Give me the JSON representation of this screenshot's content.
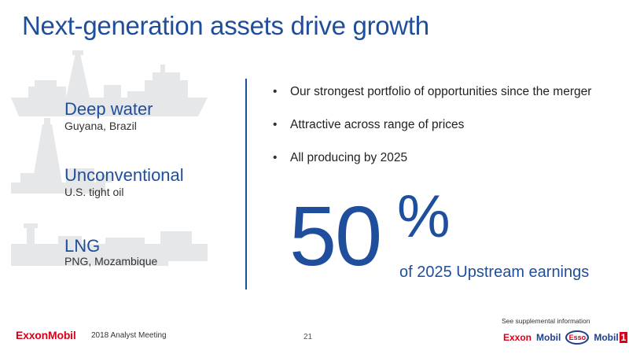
{
  "title": "Next-generation assets drive growth",
  "assets": [
    {
      "name": "Deep water",
      "sub": "Guyana, Brazil",
      "icon": "drillship-silhouette-icon"
    },
    {
      "name": "Unconventional",
      "sub": "U.S. tight oil",
      "icon": "drilling-rig-silhouette-icon"
    },
    {
      "name": "LNG",
      "sub": "PNG, Mozambique",
      "icon": "lng-plant-silhouette-icon"
    }
  ],
  "bullets": [
    "Our strongest portfolio of opportunities since the merger",
    "Attractive across range of prices",
    "All producing by 2025"
  ],
  "highlight": {
    "number": "50",
    "percent": "%",
    "caption": "of 2025 Upstream earnings"
  },
  "footer": {
    "logo": "ExxonMobil",
    "meeting": "2018 Analyst Meeting",
    "page": "21",
    "supplemental": "See supplemental information",
    "brands": {
      "exxon": "Exxon",
      "mobil": "Mobil",
      "esso": "Esso",
      "mobil1_prefix": "Mobil",
      "mobil1_suffix": "1"
    }
  },
  "colors": {
    "brand_blue": "#1f4e9c",
    "brand_red": "#d6001c",
    "silhouette_gray": "#e6e7e9"
  }
}
